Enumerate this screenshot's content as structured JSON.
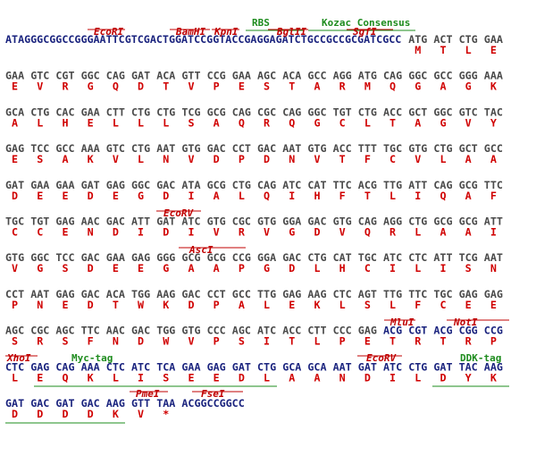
{
  "colors": {
    "vector": "#1a237e",
    "insert": "#4a4a4a",
    "amino_acid": "#d00000",
    "site": "#c00000",
    "feature": "#1e8c1e"
  },
  "rows": [
    {
      "leader": "ATAGGGCGGCCGGGAATTCGTCGACTGGATCCGGTACCGAGGAGATCTGCCGCCGCGATCGCC",
      "codons": [
        "ATG",
        "ACT",
        "CTG",
        "GAA"
      ],
      "aa": [
        "M",
        "T",
        "L",
        "E"
      ]
    },
    {
      "codons": [
        "GAA",
        "GTC",
        "CGT",
        "GGC",
        "CAG",
        "GAT",
        "ACA",
        "GTT",
        "CCG",
        "GAA",
        "AGC",
        "ACA",
        "GCC",
        "AGG",
        "ATG",
        "CAG",
        "GGC",
        "GCC",
        "GGG",
        "AAA"
      ],
      "aa": [
        "E",
        "V",
        "R",
        "G",
        "Q",
        "D",
        "T",
        "V",
        "P",
        "E",
        "S",
        "T",
        "A",
        "R",
        "M",
        "Q",
        "G",
        "A",
        "G",
        "K"
      ]
    },
    {
      "codons": [
        "GCA",
        "CTG",
        "CAC",
        "GAA",
        "CTT",
        "CTG",
        "CTG",
        "TCG",
        "GCG",
        "CAG",
        "CGC",
        "CAG",
        "GGC",
        "TGT",
        "CTG",
        "ACC",
        "GCT",
        "GGC",
        "GTC",
        "TAC"
      ],
      "aa": [
        "A",
        "L",
        "H",
        "E",
        "L",
        "L",
        "L",
        "S",
        "A",
        "Q",
        "R",
        "Q",
        "G",
        "C",
        "L",
        "T",
        "A",
        "G",
        "V",
        "Y"
      ]
    },
    {
      "codons": [
        "GAG",
        "TCC",
        "GCC",
        "AAA",
        "GTC",
        "CTG",
        "AAT",
        "GTG",
        "GAC",
        "CCT",
        "GAC",
        "AAT",
        "GTG",
        "ACC",
        "TTT",
        "TGC",
        "GTG",
        "CTG",
        "GCT",
        "GCC"
      ],
      "aa": [
        "E",
        "S",
        "A",
        "K",
        "V",
        "L",
        "N",
        "V",
        "D",
        "P",
        "D",
        "N",
        "V",
        "T",
        "F",
        "C",
        "V",
        "L",
        "A",
        "A"
      ]
    },
    {
      "codons": [
        "GAT",
        "GAA",
        "GAA",
        "GAT",
        "GAG",
        "GGC",
        "GAC",
        "ATA",
        "GCG",
        "CTG",
        "CAG",
        "ATC",
        "CAT",
        "TTC",
        "ACG",
        "TTG",
        "ATT",
        "CAG",
        "GCG",
        "TTC"
      ],
      "aa": [
        "D",
        "E",
        "E",
        "D",
        "E",
        "G",
        "D",
        "I",
        "A",
        "L",
        "Q",
        "I",
        "H",
        "F",
        "T",
        "L",
        "I",
        "Q",
        "A",
        "F"
      ]
    },
    {
      "codons": [
        "TGC",
        "TGT",
        "GAG",
        "AAC",
        "GAC",
        "ATT",
        "GAT",
        "ATC",
        "GTG",
        "CGC",
        "GTG",
        "GGA",
        "GAC",
        "GTG",
        "CAG",
        "AGG",
        "CTG",
        "GCG",
        "GCG",
        "ATT"
      ],
      "aa": [
        "C",
        "C",
        "E",
        "N",
        "D",
        "I",
        "D",
        "I",
        "V",
        "R",
        "V",
        "G",
        "D",
        "V",
        "Q",
        "R",
        "L",
        "A",
        "A",
        "I"
      ]
    },
    {
      "codons": [
        "GTG",
        "GGC",
        "TCC",
        "GAC",
        "GAA",
        "GAG",
        "GGG",
        "GCG",
        "GCG",
        "CCG",
        "GGA",
        "GAC",
        "CTG",
        "CAT",
        "TGC",
        "ATC",
        "CTC",
        "ATT",
        "TCG",
        "AAT"
      ],
      "aa": [
        "V",
        "G",
        "S",
        "D",
        "E",
        "E",
        "G",
        "A",
        "A",
        "P",
        "G",
        "D",
        "L",
        "H",
        "C",
        "I",
        "L",
        "I",
        "S",
        "N"
      ]
    },
    {
      "codons": [
        "CCT",
        "AAT",
        "GAG",
        "GAC",
        "ACA",
        "TGG",
        "AAG",
        "GAC",
        "CCT",
        "GCC",
        "TTG",
        "GAG",
        "AAG",
        "CTC",
        "AGT",
        "TTG",
        "TTC",
        "TGC",
        "GAG",
        "GAG"
      ],
      "aa": [
        "P",
        "N",
        "E",
        "D",
        "T",
        "W",
        "K",
        "D",
        "P",
        "A",
        "L",
        "E",
        "K",
        "L",
        "S",
        "L",
        "F",
        "C",
        "E",
        "E"
      ]
    },
    {
      "codons": [
        "AGC",
        "CGC",
        "AGC",
        "TTC",
        "AAC",
        "GAC",
        "TGG",
        "GTG",
        "CCC",
        "AGC",
        "ATC",
        "ACC",
        "CTT",
        "CCC",
        "GAG",
        "ACG",
        "CGT",
        "ACG",
        "CGG",
        "CCG"
      ],
      "aa": [
        "S",
        "R",
        "S",
        "F",
        "N",
        "D",
        "W",
        "V",
        "P",
        "S",
        "I",
        "T",
        "L",
        "P",
        "E",
        "T",
        "R",
        "T",
        "R",
        "P"
      ],
      "vector_from": 15
    },
    {
      "codons": [
        "CTC",
        "GAG",
        "CAG",
        "AAA",
        "CTC",
        "ATC",
        "TCA",
        "GAA",
        "GAG",
        "GAT",
        "CTG",
        "GCA",
        "GCA",
        "AAT",
        "GAT",
        "ATC",
        "CTG",
        "GAT",
        "TAC",
        "AAG"
      ],
      "aa": [
        "L",
        "E",
        "Q",
        "K",
        "L",
        "I",
        "S",
        "E",
        "E",
        "D",
        "L",
        "A",
        "A",
        "N",
        "D",
        "I",
        "L",
        "D",
        "Y",
        "K"
      ],
      "vector_from": 0
    },
    {
      "codons": [
        "GAT",
        "GAC",
        "GAT",
        "GAC",
        "AAG",
        "GTT",
        "TAA"
      ],
      "aa": [
        "D",
        "D",
        "D",
        "D",
        "K",
        "V",
        "*"
      ],
      "vector_from": 0,
      "trailer": "ACGGCCGGCC"
    }
  ],
  "annotations": [
    {
      "label": "RBS",
      "kind": "feature"
    },
    {
      "label": "Kozac Consensus",
      "kind": "feature"
    },
    {
      "label": "EcoRI",
      "kind": "site"
    },
    {
      "label": "BamHI",
      "kind": "site"
    },
    {
      "label": "KpnI",
      "kind": "site"
    },
    {
      "label": "BglII",
      "kind": "site"
    },
    {
      "label": "SgfI",
      "kind": "site"
    },
    {
      "label": "EcoRV",
      "kind": "site"
    },
    {
      "label": "AscI",
      "kind": "site"
    },
    {
      "label": "MluI",
      "kind": "site"
    },
    {
      "label": "NotI",
      "kind": "site"
    },
    {
      "label": "XhoI",
      "kind": "site"
    },
    {
      "label": "Myc-tag",
      "kind": "feature"
    },
    {
      "label": "EcoRV",
      "kind": "site"
    },
    {
      "label": "DDK-tag",
      "kind": "feature"
    },
    {
      "label": "PmeI",
      "kind": "site"
    },
    {
      "label": "FseI",
      "kind": "site"
    }
  ]
}
